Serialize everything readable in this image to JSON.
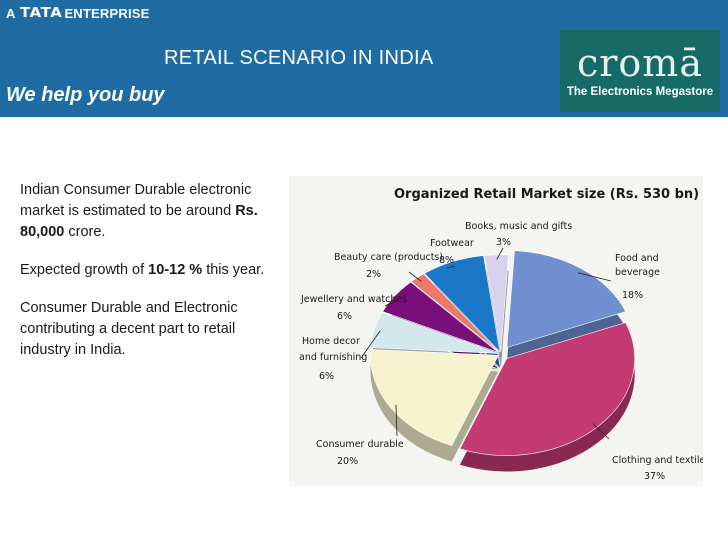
{
  "header": {
    "tag_prefix": "A",
    "tata_logo": "TATA",
    "tag_suffix": "ENTERPRISE",
    "title": "RETAIL SCENARIO IN INDIA",
    "slogan": "We  help you buy",
    "background": "#1f6ca5"
  },
  "logo": {
    "brand": "cromā",
    "tagline": "The Electronics Megastore",
    "background": "#176b66"
  },
  "body": {
    "para1_before": "Indian Consumer Durable electronic market is estimated to be around ",
    "para1_bold": "Rs. 80,000",
    "para1_after": " crore.",
    "para2_before": " Expected  growth of  ",
    "para2_bold": "10-12 %",
    "para2_after": " this year.",
    "para3": "Consumer Durable and Electronic contributing a decent part to retail industry  in India."
  },
  "chart_data": {
    "type": "pie",
    "title": "Organized Retail Market size (Rs. 530 bn)",
    "slices": [
      {
        "label": "Food and beverage",
        "value": 18,
        "value_label": "18%",
        "color": "#6f8fd0"
      },
      {
        "label": "Clothing and textile",
        "value": 37,
        "value_label": "37%",
        "color": "#c43a72"
      },
      {
        "label": "Consumer durable",
        "value": 20,
        "value_label": "20%",
        "color": "#f6f3cf"
      },
      {
        "label": "Home decor and furnishing",
        "value": 6,
        "value_label": "6%",
        "color": "#d3e8ec"
      },
      {
        "label": "Jewellery and watches",
        "value": 6,
        "value_label": "6%",
        "color": "#7a0f7a"
      },
      {
        "label": "Beauty care (products)",
        "value": 2,
        "value_label": "2%",
        "color": "#ee7866"
      },
      {
        "label": "Footwear",
        "value": 8,
        "value_label": "8%",
        "color": "#1b77c8"
      },
      {
        "label": "Books, music and gifts",
        "value": 3,
        "value_label": "3%",
        "color": "#d8d2ee"
      }
    ],
    "labels_text": {
      "food_line1": "Food and",
      "food_line2": "beverage",
      "clothing": "Clothing and textile",
      "consumer": "Consumer durable",
      "home_line1": "Home decor",
      "home_line2": "and furnishing",
      "jewellery": "Jewellery and watches",
      "beauty": "Beauty care (products)",
      "footwear": "Footwear",
      "books": "Books, music and gifts"
    }
  }
}
